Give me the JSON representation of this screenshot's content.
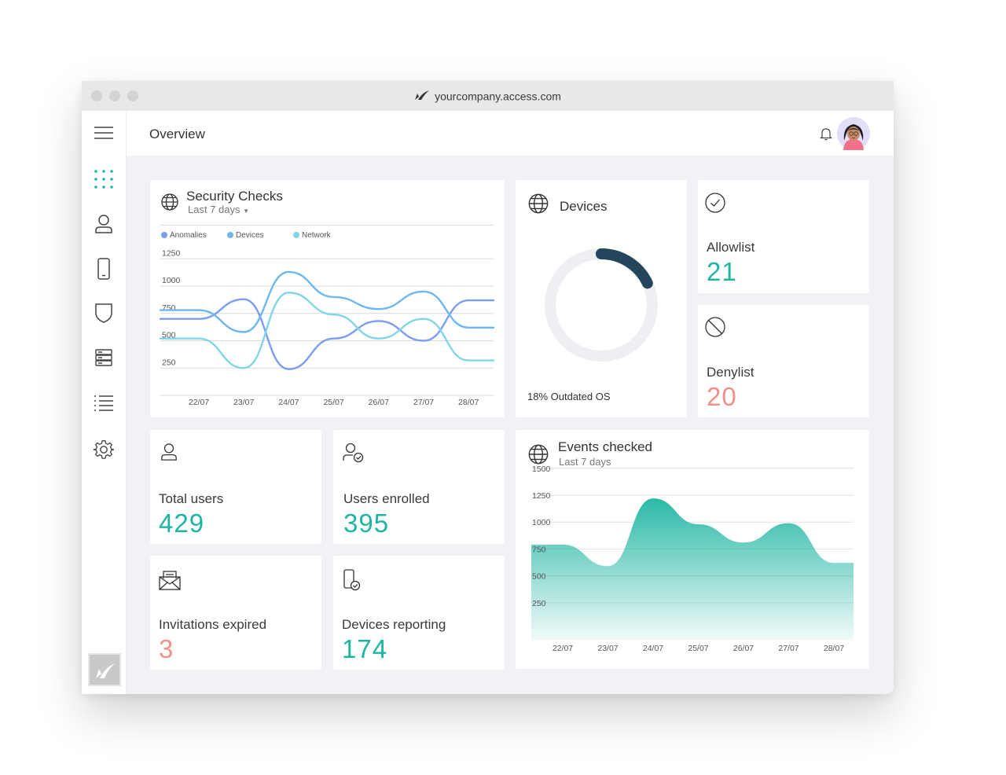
{
  "browser": {
    "url": "yourcompany.access.com"
  },
  "header": {
    "title": "Overview"
  },
  "sidebar": {
    "items": [
      {
        "icon": "menu-icon"
      },
      {
        "icon": "dashboard-grid-icon",
        "active": true
      },
      {
        "icon": "user-icon"
      },
      {
        "icon": "mobile-device-icon"
      },
      {
        "icon": "shield-icon"
      },
      {
        "icon": "server-icon"
      },
      {
        "icon": "list-icon"
      },
      {
        "icon": "gear-icon"
      }
    ]
  },
  "colors": {
    "teal": "#1fb5a3",
    "salmon": "#f19188",
    "anomalies": "#7b9cf0",
    "devices": "#6fb7f0",
    "network": "#7fd6ea",
    "donut": "#24465c"
  },
  "security_checks": {
    "title": "Security Checks",
    "range": "Last 7 days",
    "legend": [
      "Anomalies",
      "Devices",
      "Network"
    ]
  },
  "devices_card": {
    "title": "Devices",
    "caption": "18% Outdated OS",
    "outdated_fraction": 0.18
  },
  "allowlist": {
    "label": "Allowlist",
    "value": "21"
  },
  "denylist": {
    "label": "Denylist",
    "value": "20"
  },
  "total_users": {
    "label": "Total users",
    "value": "429"
  },
  "users_enrolled": {
    "label": "Users enrolled",
    "value": "395"
  },
  "invitations_expired": {
    "label": "Invitations expired",
    "value": "3"
  },
  "devices_reporting": {
    "label": "Devices reporting",
    "value": "174"
  },
  "events_checked": {
    "title": "Events checked",
    "range": "Last 7 days"
  },
  "chart_data": [
    {
      "type": "line",
      "title": "Security Checks",
      "categories": [
        "22/07",
        "23/07",
        "24/07",
        "25/07",
        "26/07",
        "27/07",
        "28/07"
      ],
      "yticks": [
        250,
        500,
        750,
        1000,
        1250
      ],
      "ylim": [
        0,
        1250
      ],
      "legend": "top-left",
      "grid": true,
      "series": [
        {
          "name": "Anomalies",
          "values": [
            700,
            880,
            240,
            520,
            680,
            500,
            870
          ]
        },
        {
          "name": "Devices",
          "values": [
            780,
            580,
            1130,
            900,
            790,
            950,
            620
          ]
        },
        {
          "name": "Network",
          "values": [
            520,
            250,
            940,
            740,
            520,
            700,
            320
          ]
        }
      ]
    },
    {
      "type": "area",
      "title": "Events checked",
      "categories": [
        "22/07",
        "23/07",
        "24/07",
        "25/07",
        "26/07",
        "27/07",
        "28/07"
      ],
      "yticks": [
        250,
        500,
        750,
        1000,
        1250,
        1500
      ],
      "ylim": [
        0,
        1500
      ],
      "grid": true,
      "values": [
        790,
        590,
        1220,
        980,
        810,
        990,
        620
      ]
    }
  ]
}
